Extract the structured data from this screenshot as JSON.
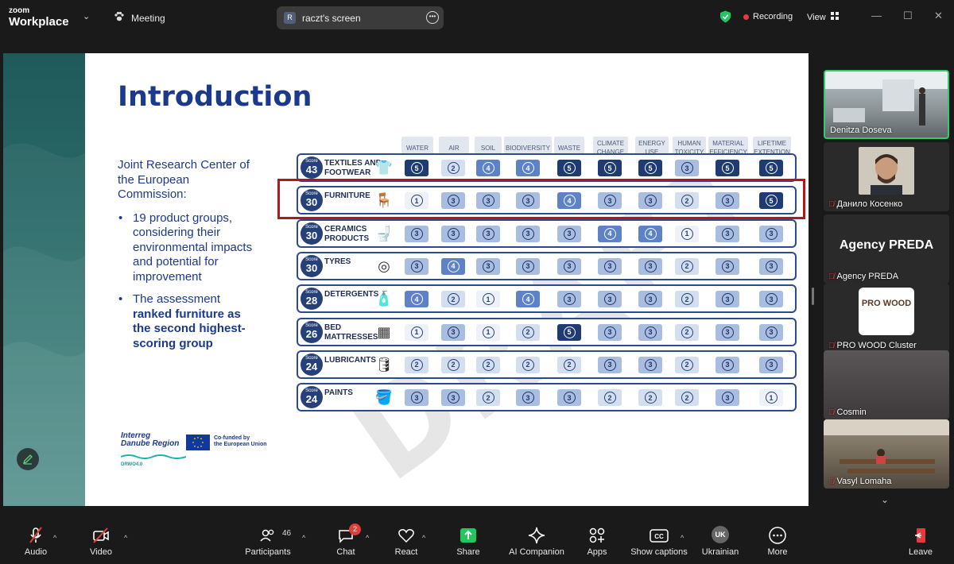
{
  "app": {
    "brand_top": "zoom",
    "brand_bottom": "Workplace",
    "meeting_label": "Meeting"
  },
  "share": {
    "avatar_letter": "R",
    "label": "raczt's screen"
  },
  "status": {
    "recording": "Recording",
    "view": "View"
  },
  "slide": {
    "title": "Introduction",
    "intro": "Joint Research Center of the European Commission:",
    "bullet1": "19 product groups, considering their environmental impacts and potential for improvement",
    "bullet2_plain": "The assessment ",
    "bullet2_bold": "ranked furniture as the second highest-scoring group",
    "logo_interreg_1": "Interreg",
    "logo_interreg_2": "Danube Region",
    "logo_cofunded_1": "Co-funded by",
    "logo_cofunded_2": "the European Union",
    "logo_drwo": "DRWO4.0",
    "watermark": "DRAFT"
  },
  "table": {
    "columns": [
      "WATER",
      "AIR",
      "SOIL",
      "BIODIVERSITY",
      "WASTE",
      "CLIMATE CHANGE",
      "ENERGY USE",
      "HUMAN TOXICITY",
      "MATERIAL EFFICIENCY",
      "LIFETIME EXTENTION"
    ],
    "score_label": "Score",
    "rows": [
      {
        "score": "43",
        "name_1": "TEXTILES and",
        "name_2": "FOOTWEAR",
        "icon": "shirt-icon",
        "glyph": "👕",
        "values": [
          5,
          2,
          4,
          4,
          5,
          5,
          5,
          3,
          5,
          5
        ]
      },
      {
        "score": "30",
        "name_1": "FURNITURE",
        "name_2": "",
        "icon": "armchair-icon",
        "glyph": "🪑",
        "values": [
          1,
          3,
          3,
          3,
          4,
          3,
          3,
          2,
          3,
          5
        ]
      },
      {
        "score": "30",
        "name_1": "CERAMICS",
        "name_2": "PRODUCTS",
        "icon": "toilet-icon",
        "glyph": "🚽",
        "values": [
          3,
          3,
          3,
          3,
          3,
          4,
          4,
          1,
          3,
          3
        ]
      },
      {
        "score": "30",
        "name_1": "TYRES",
        "name_2": "",
        "icon": "tyre-icon",
        "glyph": "◎",
        "values": [
          3,
          4,
          3,
          3,
          3,
          3,
          3,
          2,
          3,
          3
        ]
      },
      {
        "score": "28",
        "name_1": "DETERGENTS",
        "name_2": "",
        "icon": "detergent-icon",
        "glyph": "🧴",
        "values": [
          4,
          2,
          1,
          4,
          3,
          3,
          3,
          2,
          3,
          3
        ]
      },
      {
        "score": "26",
        "name_1": "BED",
        "name_2": "MATTRESSES",
        "icon": "mattress-icon",
        "glyph": "▦",
        "values": [
          1,
          3,
          1,
          2,
          5,
          3,
          3,
          2,
          3,
          3
        ]
      },
      {
        "score": "24",
        "name_1": "LUBRICANTS",
        "name_2": "",
        "icon": "oil-can-icon",
        "glyph": "🛢",
        "values": [
          2,
          2,
          2,
          2,
          2,
          3,
          3,
          2,
          3,
          3
        ]
      },
      {
        "score": "24",
        "name_1": "PAINTS",
        "name_2": "",
        "icon": "paint-can-icon",
        "glyph": "🪣",
        "values": [
          3,
          3,
          2,
          3,
          3,
          2,
          2,
          2,
          3,
          1
        ]
      }
    ]
  },
  "participants_panel": [
    {
      "name": "Denitza Doseva",
      "muted": false,
      "active": true
    },
    {
      "name": "Данило Косенко",
      "muted": true,
      "active": false
    },
    {
      "name": "Agency PREDA",
      "muted": true,
      "active": false,
      "big_name": "Agency PREDA"
    },
    {
      "name": "PRO WOOD Cluster",
      "muted": true,
      "active": false,
      "logo_text": "PRO WOOD"
    },
    {
      "name": "Cosmin",
      "muted": true,
      "active": false
    },
    {
      "name": "Vasyl Lomaha",
      "muted": true,
      "active": false
    }
  ],
  "toolbar": {
    "audio": "Audio",
    "video": "Video",
    "participants": "Participants",
    "participants_count": "46",
    "chat": "Chat",
    "chat_badge": "2",
    "react": "React",
    "share": "Share",
    "ai": "AI Companion",
    "apps": "Apps",
    "captions": "Show captions",
    "language": "Ukrainian",
    "language_code": "UK",
    "more": "More",
    "leave": "Leave"
  }
}
